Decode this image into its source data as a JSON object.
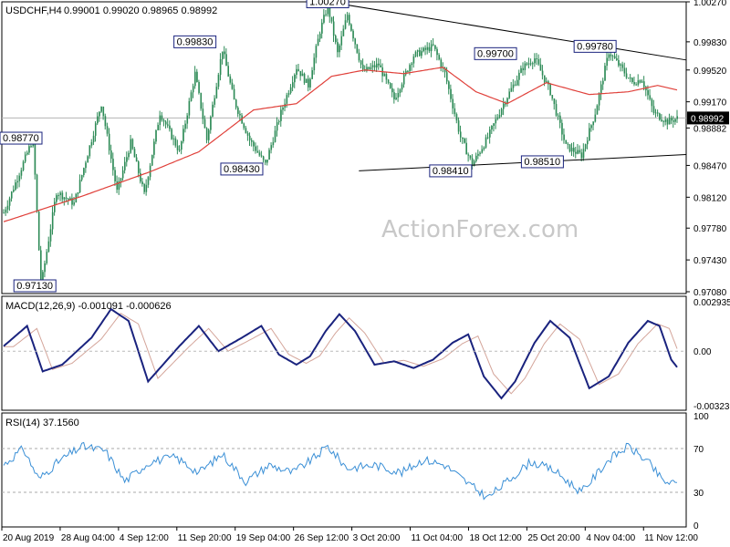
{
  "header": {
    "symbol": "USDCHF,H4",
    "ohlc": "0.99001 0.99020 0.98965 0.98992"
  },
  "watermark": "ActionForex.com",
  "colors": {
    "candle": "#2e8b57",
    "sma": "#e0403a",
    "trendline": "#000000",
    "macd": "#1a237e",
    "signal": "#d4a59a",
    "rsi": "#3a8fd6",
    "label_border": "#1a237e"
  },
  "chart_data": [
    {
      "type": "candlestick",
      "name": "price",
      "ylim": [
        0.9708,
        1.0024
      ],
      "y_ticks": [
        "1.00270",
        "0.99830",
        "0.99520",
        "0.99170",
        "0.98882",
        "0.98470",
        "0.98120",
        "0.97780",
        "0.97430",
        "0.97080"
      ],
      "current_price": "0.98992",
      "x_ticks": [
        "20 Aug 2019",
        "28 Aug 04:00",
        "4 Sep 12:00",
        "11 Sep 20:00",
        "19 Sep 04:00",
        "26 Sep 12:00",
        "3 Oct 20:00",
        "11 Oct 04:00",
        "18 Oct 12:00",
        "25 Oct 20:00",
        "4 Nov 04:00",
        "11 Nov 12:00"
      ],
      "annotations": [
        {
          "text": "0.98770",
          "bar": 0,
          "price": 0.9877
        },
        {
          "text": "0.97130",
          "bar": 16,
          "price": 0.9713
        },
        {
          "text": "0.99830",
          "bar": 98,
          "price": 0.9983
        },
        {
          "text": "0.98430",
          "bar": 122,
          "price": 0.9843
        },
        {
          "text": "1.00270",
          "bar": 166,
          "price": 1.0027
        },
        {
          "text": "0.98410",
          "bar": 229,
          "price": 0.9841
        },
        {
          "text": "0.99700",
          "bar": 252,
          "price": 0.997
        },
        {
          "text": "0.98510",
          "bar": 276,
          "price": 0.9851
        },
        {
          "text": "0.99780",
          "bar": 303,
          "price": 0.9978
        }
      ],
      "trendlines": [
        {
          "from": {
            "bar": 166,
            "price": 1.0027
          },
          "to": {
            "bar": 345,
            "price": 0.9963
          }
        },
        {
          "from": {
            "bar": 182,
            "price": 0.9841
          },
          "to": {
            "bar": 345,
            "price": 0.9859
          }
        }
      ],
      "pivots": [
        {
          "bar": 0,
          "price": 0.9795
        },
        {
          "bar": 15,
          "price": 0.9877
        },
        {
          "bar": 19,
          "price": 0.9713
        },
        {
          "bar": 27,
          "price": 0.9818
        },
        {
          "bar": 36,
          "price": 0.9805
        },
        {
          "bar": 50,
          "price": 0.9915
        },
        {
          "bar": 58,
          "price": 0.9818
        },
        {
          "bar": 65,
          "price": 0.9872
        },
        {
          "bar": 72,
          "price": 0.9815
        },
        {
          "bar": 80,
          "price": 0.9905
        },
        {
          "bar": 90,
          "price": 0.9862
        },
        {
          "bar": 98,
          "price": 0.9948
        },
        {
          "bar": 104,
          "price": 0.9875
        },
        {
          "bar": 112,
          "price": 0.9975
        },
        {
          "bar": 118,
          "price": 0.9918
        },
        {
          "bar": 126,
          "price": 0.9875
        },
        {
          "bar": 134,
          "price": 0.9848
        },
        {
          "bar": 142,
          "price": 0.9905
        },
        {
          "bar": 150,
          "price": 0.9955
        },
        {
          "bar": 156,
          "price": 0.9935
        },
        {
          "bar": 162,
          "price": 0.9995
        },
        {
          "bar": 166,
          "price": 1.0023
        },
        {
          "bar": 171,
          "price": 0.997
        },
        {
          "bar": 176,
          "price": 1.0013
        },
        {
          "bar": 184,
          "price": 0.995
        },
        {
          "bar": 192,
          "price": 0.9958
        },
        {
          "bar": 200,
          "price": 0.992
        },
        {
          "bar": 210,
          "price": 0.9968
        },
        {
          "bar": 220,
          "price": 0.9978
        },
        {
          "bar": 226,
          "price": 0.9948
        },
        {
          "bar": 234,
          "price": 0.9878
        },
        {
          "bar": 240,
          "price": 0.9848
        },
        {
          "bar": 248,
          "price": 0.9878
        },
        {
          "bar": 256,
          "price": 0.9915
        },
        {
          "bar": 266,
          "price": 0.9955
        },
        {
          "bar": 272,
          "price": 0.9965
        },
        {
          "bar": 280,
          "price": 0.9928
        },
        {
          "bar": 288,
          "price": 0.9868
        },
        {
          "bar": 296,
          "price": 0.9858
        },
        {
          "bar": 303,
          "price": 0.9905
        },
        {
          "bar": 310,
          "price": 0.9972
        },
        {
          "bar": 316,
          "price": 0.9955
        },
        {
          "bar": 322,
          "price": 0.9938
        },
        {
          "bar": 327,
          "price": 0.9942
        },
        {
          "bar": 333,
          "price": 0.9905
        },
        {
          "bar": 340,
          "price": 0.9895
        },
        {
          "bar": 345,
          "price": 0.9899
        }
      ],
      "sma_pivots": [
        {
          "bar": 0,
          "price": 0.9785
        },
        {
          "bar": 40,
          "price": 0.9813
        },
        {
          "bar": 75,
          "price": 0.984
        },
        {
          "bar": 100,
          "price": 0.9862
        },
        {
          "bar": 128,
          "price": 0.9908
        },
        {
          "bar": 150,
          "price": 0.9915
        },
        {
          "bar": 168,
          "price": 0.9945
        },
        {
          "bar": 185,
          "price": 0.9952
        },
        {
          "bar": 205,
          "price": 0.9948
        },
        {
          "bar": 225,
          "price": 0.9955
        },
        {
          "bar": 242,
          "price": 0.9928
        },
        {
          "bar": 258,
          "price": 0.9915
        },
        {
          "bar": 278,
          "price": 0.9938
        },
        {
          "bar": 300,
          "price": 0.9925
        },
        {
          "bar": 320,
          "price": 0.9928
        },
        {
          "bar": 335,
          "price": 0.9935
        },
        {
          "bar": 345,
          "price": 0.993
        }
      ],
      "bar_count": 346
    },
    {
      "type": "line",
      "name": "MACD(12,26,9)",
      "label": "MACD(12,26,9) -0.001091 -0.000626",
      "ylim": [
        -0.0034,
        0.0031
      ],
      "y_ticks": [
        "0.002935",
        "0.00",
        "-0.003238"
      ],
      "macd_pivots": [
        {
          "bar": 0,
          "value": 0.0003
        },
        {
          "bar": 12,
          "value": 0.0015
        },
        {
          "bar": 20,
          "value": -0.0012
        },
        {
          "bar": 30,
          "value": -0.0008
        },
        {
          "bar": 45,
          "value": 0.0008
        },
        {
          "bar": 55,
          "value": 0.0025
        },
        {
          "bar": 64,
          "value": 0.0018
        },
        {
          "bar": 74,
          "value": -0.0018
        },
        {
          "bar": 90,
          "value": 0.0003
        },
        {
          "bar": 100,
          "value": 0.0015
        },
        {
          "bar": 110,
          "value": 0.0
        },
        {
          "bar": 122,
          "value": 0.0008
        },
        {
          "bar": 132,
          "value": 0.0015
        },
        {
          "bar": 141,
          "value": -0.0002
        },
        {
          "bar": 150,
          "value": -0.0008
        },
        {
          "bar": 157,
          "value": -0.0003
        },
        {
          "bar": 165,
          "value": 0.0012
        },
        {
          "bar": 172,
          "value": 0.0022
        },
        {
          "bar": 180,
          "value": 0.0012
        },
        {
          "bar": 190,
          "value": -0.0008
        },
        {
          "bar": 200,
          "value": -0.0006
        },
        {
          "bar": 210,
          "value": -0.001
        },
        {
          "bar": 220,
          "value": -0.0005
        },
        {
          "bar": 230,
          "value": 0.0005
        },
        {
          "bar": 238,
          "value": 0.001
        },
        {
          "bar": 246,
          "value": -0.0015
        },
        {
          "bar": 255,
          "value": -0.0028
        },
        {
          "bar": 262,
          "value": -0.0018
        },
        {
          "bar": 272,
          "value": 0.0005
        },
        {
          "bar": 280,
          "value": 0.0018
        },
        {
          "bar": 290,
          "value": 0.0008
        },
        {
          "bar": 300,
          "value": -0.0022
        },
        {
          "bar": 310,
          "value": -0.0015
        },
        {
          "bar": 320,
          "value": 0.0005
        },
        {
          "bar": 330,
          "value": 0.0018
        },
        {
          "bar": 336,
          "value": 0.0015
        },
        {
          "bar": 342,
          "value": -0.0005
        },
        {
          "bar": 346,
          "value": -0.0011
        }
      ],
      "signal_lag_bars": 5
    },
    {
      "type": "line",
      "name": "RSI(14)",
      "label": "RSI(14) 37.1560",
      "ylim": [
        0,
        100
      ],
      "y_ticks": [
        "100",
        "70",
        "30",
        "0"
      ],
      "levels": [
        70,
        30
      ],
      "rsi_pivots": [
        {
          "bar": 0,
          "value": 55
        },
        {
          "bar": 10,
          "value": 70
        },
        {
          "bar": 18,
          "value": 42
        },
        {
          "bar": 28,
          "value": 58
        },
        {
          "bar": 40,
          "value": 72
        },
        {
          "bar": 52,
          "value": 68
        },
        {
          "bar": 62,
          "value": 40
        },
        {
          "bar": 75,
          "value": 58
        },
        {
          "bar": 88,
          "value": 62
        },
        {
          "bar": 100,
          "value": 48
        },
        {
          "bar": 112,
          "value": 65
        },
        {
          "bar": 124,
          "value": 40
        },
        {
          "bar": 136,
          "value": 55
        },
        {
          "bar": 148,
          "value": 48
        },
        {
          "bar": 158,
          "value": 60
        },
        {
          "bar": 166,
          "value": 72
        },
        {
          "bar": 176,
          "value": 52
        },
        {
          "bar": 190,
          "value": 55
        },
        {
          "bar": 204,
          "value": 48
        },
        {
          "bar": 215,
          "value": 60
        },
        {
          "bar": 226,
          "value": 55
        },
        {
          "bar": 238,
          "value": 38
        },
        {
          "bar": 248,
          "value": 25
        },
        {
          "bar": 258,
          "value": 40
        },
        {
          "bar": 270,
          "value": 58
        },
        {
          "bar": 282,
          "value": 50
        },
        {
          "bar": 296,
          "value": 30
        },
        {
          "bar": 310,
          "value": 60
        },
        {
          "bar": 320,
          "value": 72
        },
        {
          "bar": 330,
          "value": 58
        },
        {
          "bar": 338,
          "value": 40
        },
        {
          "bar": 346,
          "value": 37
        }
      ]
    }
  ]
}
